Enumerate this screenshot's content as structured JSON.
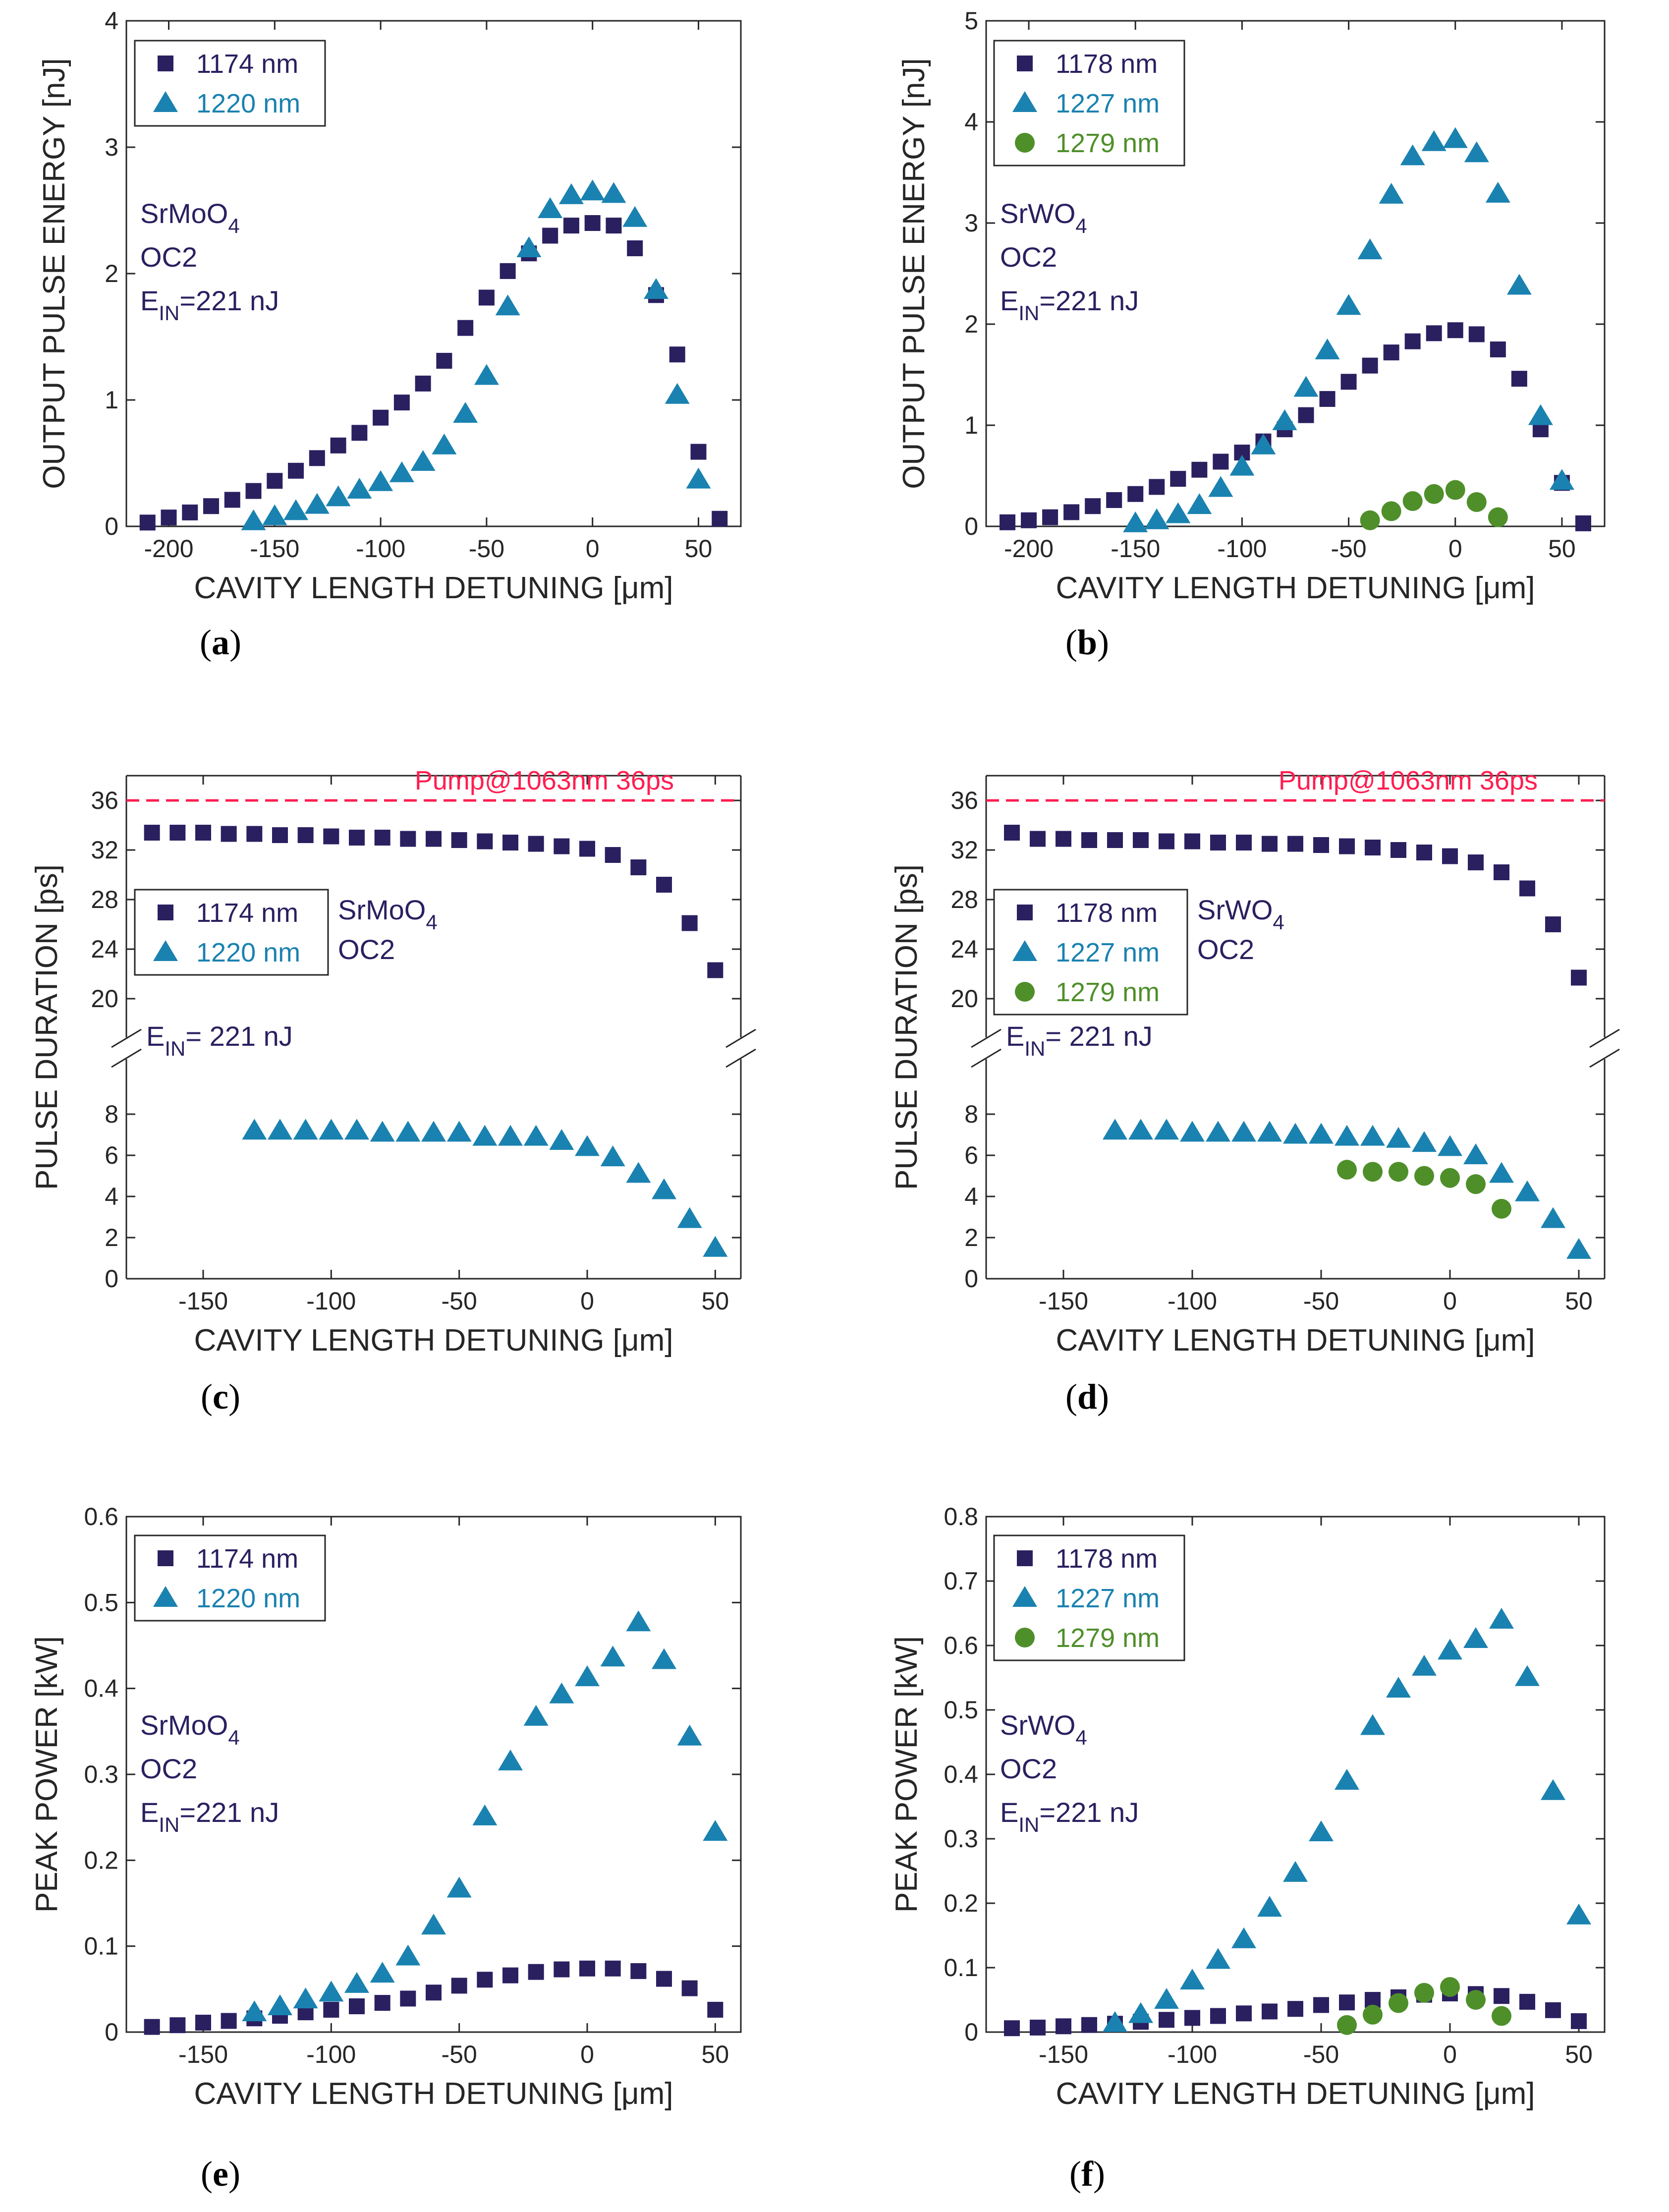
{
  "colors": {
    "navy": "#2a2060",
    "teal": "#1a82b0",
    "green": "#4f8f2a",
    "pump": "#ff1e50",
    "axis": "#262626"
  },
  "chart_data": [
    {
      "panel": "a",
      "type": "scatter",
      "subtitle": "a",
      "ylabel": "OUTPUT PULSE ENERGY [nJ]",
      "xlabel": "CAVITY LENGTH DETUNING [μm]",
      "xlim": [
        -220,
        70
      ],
      "ylim": [
        0,
        4
      ],
      "xticks": [
        -200,
        -150,
        -100,
        -50,
        0,
        50
      ],
      "xticklabels": [
        "-200",
        "-150",
        "-100",
        "-50",
        "0",
        "50"
      ],
      "yticks": [
        0,
        1,
        2,
        3,
        4
      ],
      "yticklabels": [
        "0",
        "1",
        "2",
        "3",
        "4"
      ],
      "annotation": {
        "material": "SrMoO",
        "material_sub": "4",
        "oc": "OC2",
        "ein_main": "E",
        "ein_sub": "IN",
        "ein_rest": "=221 nJ"
      },
      "series": [
        {
          "name": "1174 nm",
          "marker": "square",
          "color": "#2a2060",
          "x": [
            -210,
            -200,
            -190,
            -180,
            -170,
            -160,
            -150,
            -140,
            -130,
            -120,
            -110,
            -100,
            -90,
            -80,
            -70,
            -60,
            -50,
            -40,
            -30,
            -20,
            -10,
            0,
            10,
            20,
            30,
            40,
            50,
            60
          ],
          "y": [
            0.03,
            0.07,
            0.11,
            0.16,
            0.21,
            0.28,
            0.36,
            0.44,
            0.54,
            0.64,
            0.74,
            0.86,
            0.98,
            1.13,
            1.31,
            1.57,
            1.81,
            2.02,
            2.16,
            2.3,
            2.38,
            2.4,
            2.38,
            2.2,
            1.83,
            1.36,
            0.59,
            0.06
          ]
        },
        {
          "name": "1220 nm",
          "marker": "triangle",
          "color": "#1a82b0",
          "x": [
            -160,
            -150,
            -140,
            -130,
            -120,
            -110,
            -100,
            -90,
            -80,
            -70,
            -60,
            -50,
            -40,
            -30,
            -20,
            -10,
            0,
            10,
            20,
            30,
            40,
            50
          ],
          "y": [
            0.04,
            0.08,
            0.12,
            0.17,
            0.23,
            0.29,
            0.35,
            0.42,
            0.51,
            0.64,
            0.89,
            1.19,
            1.74,
            2.2,
            2.51,
            2.62,
            2.65,
            2.63,
            2.44,
            1.87,
            1.04,
            0.37
          ]
        }
      ]
    },
    {
      "panel": "b",
      "type": "scatter",
      "subtitle": "b",
      "ylabel": "OUTPUT PULSE ENERGY [nJ]",
      "xlabel": "CAVITY LENGTH DETUNING [μm]",
      "xlim": [
        -220,
        70
      ],
      "ylim": [
        0,
        5
      ],
      "xticks": [
        -200,
        -150,
        -100,
        -50,
        0,
        50
      ],
      "xticklabels": [
        "-200",
        "-150",
        "-100",
        "-50",
        "0",
        "50"
      ],
      "yticks": [
        0,
        1,
        2,
        3,
        4,
        5
      ],
      "yticklabels": [
        "0",
        "1",
        "2",
        "3",
        "4",
        "5"
      ],
      "annotation": {
        "material": "SrWO",
        "material_sub": "4",
        "oc": "OC2",
        "ein_main": "E",
        "ein_sub": "IN",
        "ein_rest": "=221 nJ"
      },
      "series": [
        {
          "name": "1178 nm",
          "marker": "square",
          "color": "#2a2060",
          "x": [
            -210,
            -200,
            -190,
            -180,
            -170,
            -160,
            -150,
            -140,
            -130,
            -120,
            -110,
            -100,
            -90,
            -80,
            -70,
            -60,
            -50,
            -40,
            -30,
            -20,
            -10,
            0,
            10,
            20,
            30,
            40,
            50,
            60
          ],
          "y": [
            0.04,
            0.06,
            0.09,
            0.14,
            0.2,
            0.26,
            0.32,
            0.39,
            0.47,
            0.56,
            0.64,
            0.73,
            0.84,
            0.96,
            1.1,
            1.26,
            1.43,
            1.59,
            1.72,
            1.83,
            1.91,
            1.94,
            1.9,
            1.75,
            1.46,
            0.96,
            0.43,
            0.03
          ]
        },
        {
          "name": "1227 nm",
          "marker": "triangle",
          "color": "#1a82b0",
          "x": [
            -150,
            -140,
            -130,
            -120,
            -110,
            -100,
            -90,
            -80,
            -70,
            -60,
            -50,
            -40,
            -30,
            -20,
            -10,
            0,
            10,
            20,
            30,
            40,
            50
          ],
          "y": [
            0.03,
            0.06,
            0.12,
            0.21,
            0.38,
            0.59,
            0.8,
            1.04,
            1.37,
            1.74,
            2.18,
            2.73,
            3.28,
            3.66,
            3.8,
            3.83,
            3.69,
            3.29,
            2.38,
            1.09,
            0.45
          ]
        },
        {
          "name": "1279 nm",
          "marker": "circle",
          "color": "#4f8f2a",
          "x": [
            -40,
            -30,
            -20,
            -10,
            0,
            10,
            20
          ],
          "y": [
            0.06,
            0.15,
            0.25,
            0.32,
            0.36,
            0.24,
            0.09
          ]
        }
      ]
    },
    {
      "panel": "c",
      "type": "scatter",
      "subtitle": "c",
      "ylabel": "PULSE DURATION [ps]",
      "xlabel": "CAVITY LENGTH DETUNING [μm]",
      "xlim": [
        -180,
        60
      ],
      "broken_axis": true,
      "ylim_low": [
        0,
        10
      ],
      "ylim_high": [
        18,
        38
      ],
      "xticks": [
        -150,
        -100,
        -50,
        0,
        50
      ],
      "xticklabels": [
        "-150",
        "-100",
        "-50",
        "0",
        "50"
      ],
      "yticks_low": [
        0,
        2,
        4,
        6,
        8
      ],
      "yticklabels_low": [
        "0",
        "2",
        "4",
        "6",
        "8"
      ],
      "yticks_high": [
        20,
        24,
        28,
        32,
        36
      ],
      "yticklabels_high": [
        "20",
        "24",
        "28",
        "32",
        "36"
      ],
      "pump_line": {
        "y": 36,
        "label": "Pump@1063nm 36ps"
      },
      "annotation": {
        "material": "SrMoO",
        "material_sub": "4",
        "oc": "OC2",
        "ein_main": "E",
        "ein_sub": "IN",
        "ein_rest": "= 221 nJ"
      },
      "series": [
        {
          "name": "1174 nm",
          "marker": "square",
          "color": "#2a2060",
          "x": [
            -170,
            -160,
            -150,
            -140,
            -130,
            -120,
            -110,
            -100,
            -90,
            -80,
            -70,
            -60,
            -50,
            -40,
            -30,
            -20,
            -10,
            0,
            10,
            20,
            30,
            40,
            50
          ],
          "y": [
            33.4,
            33.4,
            33.4,
            33.3,
            33.3,
            33.2,
            33.2,
            33.1,
            33.0,
            33.0,
            32.9,
            32.9,
            32.8,
            32.7,
            32.6,
            32.5,
            32.3,
            32.1,
            31.6,
            30.6,
            29.2,
            26.1,
            22.3
          ]
        },
        {
          "name": "1220 nm",
          "marker": "triangle",
          "color": "#1a82b0",
          "x": [
            -130,
            -120,
            -110,
            -100,
            -90,
            -80,
            -70,
            -60,
            -50,
            -40,
            -30,
            -20,
            -10,
            0,
            10,
            20,
            30,
            40,
            50
          ],
          "y": [
            7.2,
            7.2,
            7.2,
            7.2,
            7.2,
            7.1,
            7.1,
            7.1,
            7.1,
            6.9,
            6.9,
            6.9,
            6.7,
            6.4,
            5.9,
            5.1,
            4.3,
            2.9,
            1.5
          ]
        }
      ]
    },
    {
      "panel": "d",
      "type": "scatter",
      "subtitle": "d",
      "ylabel": "PULSE DURATION [ps]",
      "xlabel": "CAVITY LENGTH DETUNING [μm]",
      "xlim": [
        -180,
        60
      ],
      "broken_axis": true,
      "ylim_low": [
        0,
        10
      ],
      "ylim_high": [
        18,
        38
      ],
      "xticks": [
        -150,
        -100,
        -50,
        0,
        50
      ],
      "xticklabels": [
        "-150",
        "-100",
        "-50",
        "0",
        "50"
      ],
      "yticks_low": [
        0,
        2,
        4,
        6,
        8
      ],
      "yticklabels_low": [
        "0",
        "2",
        "4",
        "6",
        "8"
      ],
      "yticks_high": [
        20,
        24,
        28,
        32,
        36
      ],
      "yticklabels_high": [
        "20",
        "24",
        "28",
        "32",
        "36"
      ],
      "pump_line": {
        "y": 36,
        "label": "Pump@1063nm 36ps"
      },
      "annotation": {
        "material": "SrWO",
        "material_sub": "4",
        "oc": "OC2",
        "ein_main": "E",
        "ein_sub": "IN",
        "ein_rest": "= 221 nJ"
      },
      "series": [
        {
          "name": "1178 nm",
          "marker": "square",
          "color": "#2a2060",
          "x": [
            -170,
            -160,
            -150,
            -140,
            -130,
            -120,
            -110,
            -100,
            -90,
            -80,
            -70,
            -60,
            -50,
            -40,
            -30,
            -20,
            -10,
            0,
            10,
            20,
            30,
            40,
            50
          ],
          "y": [
            33.4,
            32.9,
            32.9,
            32.8,
            32.8,
            32.8,
            32.7,
            32.7,
            32.6,
            32.6,
            32.5,
            32.5,
            32.4,
            32.3,
            32.2,
            32.0,
            31.8,
            31.5,
            31.0,
            30.2,
            28.9,
            26.0,
            21.7
          ]
        },
        {
          "name": "1227 nm",
          "marker": "triangle",
          "color": "#1a82b0",
          "x": [
            -130,
            -120,
            -110,
            -100,
            -90,
            -80,
            -70,
            -60,
            -50,
            -40,
            -30,
            -20,
            -10,
            0,
            10,
            20,
            30,
            40,
            50
          ],
          "y": [
            7.2,
            7.2,
            7.2,
            7.1,
            7.1,
            7.1,
            7.1,
            7.0,
            7.0,
            6.9,
            6.9,
            6.8,
            6.6,
            6.4,
            6.0,
            5.1,
            4.2,
            2.9,
            1.4
          ]
        },
        {
          "name": "1279 nm",
          "marker": "circle",
          "color": "#4f8f2a",
          "x": [
            -40,
            -30,
            -20,
            -10,
            0,
            10,
            20
          ],
          "y": [
            5.3,
            5.2,
            5.2,
            5.0,
            4.9,
            4.6,
            3.4
          ]
        }
      ]
    },
    {
      "panel": "e",
      "type": "scatter",
      "subtitle": "e",
      "ylabel": "PEAK POWER [kW]",
      "xlabel": "CAVITY LENGTH DETUNING [μm]",
      "xlim": [
        -180,
        60
      ],
      "ylim": [
        0,
        0.6
      ],
      "xticks": [
        -150,
        -100,
        -50,
        0,
        50
      ],
      "xticklabels": [
        "-150",
        "-100",
        "-50",
        "0",
        "50"
      ],
      "yticks": [
        0,
        0.1,
        0.2,
        0.3,
        0.4,
        0.5,
        0.6
      ],
      "yticklabels": [
        "0",
        "0.1",
        "0.2",
        "0.3",
        "0.4",
        "0.5",
        "0.6"
      ],
      "annotation": {
        "material": "SrMoO",
        "material_sub": "4",
        "oc": "OC2",
        "ein_main": "E",
        "ein_sub": "IN",
        "ein_rest": "=221 nJ"
      },
      "series": [
        {
          "name": "1174 nm",
          "marker": "square",
          "color": "#2a2060",
          "x": [
            -170,
            -160,
            -150,
            -140,
            -130,
            -120,
            -110,
            -100,
            -90,
            -80,
            -70,
            -60,
            -50,
            -40,
            -30,
            -20,
            -10,
            0,
            10,
            20,
            30,
            40,
            50
          ],
          "y": [
            0.006,
            0.008,
            0.011,
            0.013,
            0.016,
            0.019,
            0.023,
            0.026,
            0.03,
            0.034,
            0.039,
            0.046,
            0.054,
            0.061,
            0.066,
            0.07,
            0.073,
            0.074,
            0.074,
            0.071,
            0.062,
            0.051,
            0.026
          ]
        },
        {
          "name": "1220 nm",
          "marker": "triangle",
          "color": "#1a82b0",
          "x": [
            -130,
            -120,
            -110,
            -100,
            -90,
            -80,
            -70,
            -60,
            -50,
            -40,
            -30,
            -20,
            -10,
            0,
            10,
            20,
            30,
            40,
            50
          ],
          "y": [
            0.023,
            0.03,
            0.038,
            0.046,
            0.056,
            0.068,
            0.088,
            0.124,
            0.167,
            0.251,
            0.315,
            0.367,
            0.393,
            0.413,
            0.436,
            0.477,
            0.433,
            0.344,
            0.233
          ]
        }
      ]
    },
    {
      "panel": "f",
      "type": "scatter",
      "subtitle": "f",
      "ylabel": "PEAK POWER [kW]",
      "xlabel": "CAVITY LENGTH DETUNING [μm]",
      "xlim": [
        -180,
        60
      ],
      "ylim": [
        0,
        0.8
      ],
      "xticks": [
        -150,
        -100,
        -50,
        0,
        50
      ],
      "xticklabels": [
        "-150",
        "-100",
        "-50",
        "0",
        "50"
      ],
      "yticks": [
        0,
        0.1,
        0.2,
        0.3,
        0.4,
        0.5,
        0.6,
        0.7,
        0.8
      ],
      "yticklabels": [
        "0",
        "0.1",
        "0.2",
        "0.3",
        "0.4",
        "0.5",
        "0.6",
        "0.7",
        "0.8"
      ],
      "annotation": {
        "material": "SrWO",
        "material_sub": "4",
        "oc": "OC2",
        "ein_main": "E",
        "ein_sub": "IN",
        "ein_rest": "=221 nJ"
      },
      "series": [
        {
          "name": "1178 nm",
          "marker": "square",
          "color": "#2a2060",
          "x": [
            -170,
            -160,
            -150,
            -140,
            -130,
            -120,
            -110,
            -100,
            -90,
            -80,
            -70,
            -60,
            -50,
            -40,
            -30,
            -20,
            -10,
            0,
            10,
            20,
            30,
            40,
            50
          ],
          "y": [
            0.006,
            0.007,
            0.009,
            0.011,
            0.013,
            0.016,
            0.019,
            0.022,
            0.025,
            0.029,
            0.032,
            0.036,
            0.042,
            0.046,
            0.05,
            0.054,
            0.058,
            0.06,
            0.059,
            0.056,
            0.047,
            0.034,
            0.017
          ]
        },
        {
          "name": "1227 nm",
          "marker": "triangle",
          "color": "#1a82b0",
          "x": [
            -130,
            -120,
            -110,
            -100,
            -90,
            -80,
            -70,
            -60,
            -50,
            -40,
            -30,
            -20,
            -10,
            0,
            10,
            20,
            30,
            40,
            50
          ],
          "y": [
            0.014,
            0.028,
            0.05,
            0.08,
            0.112,
            0.144,
            0.193,
            0.247,
            0.31,
            0.39,
            0.475,
            0.533,
            0.567,
            0.592,
            0.61,
            0.64,
            0.551,
            0.374,
            0.181
          ]
        },
        {
          "name": "1279 nm",
          "marker": "circle",
          "color": "#4f8f2a",
          "x": [
            -40,
            -30,
            -20,
            -10,
            0,
            10,
            20
          ],
          "y": [
            0.011,
            0.027,
            0.045,
            0.061,
            0.07,
            0.05,
            0.025
          ]
        }
      ]
    }
  ]
}
